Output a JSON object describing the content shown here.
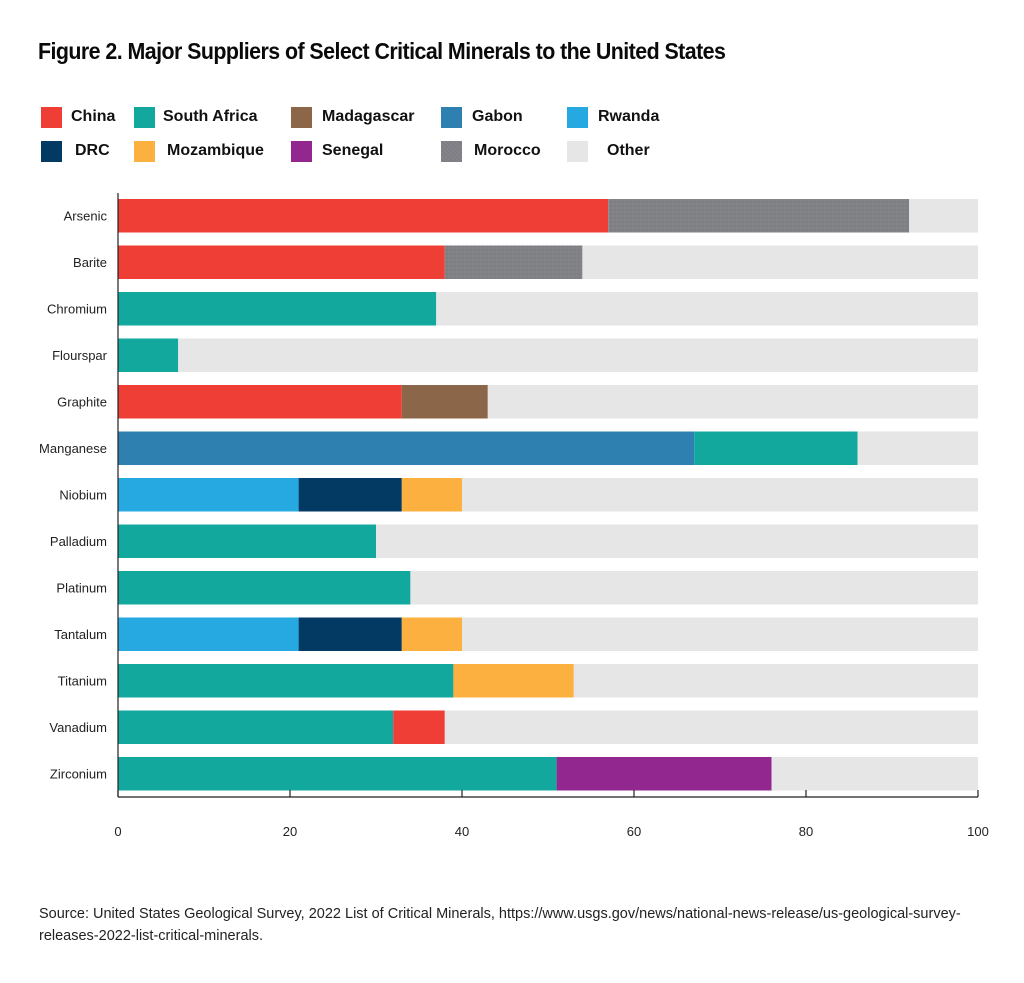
{
  "chart_data": {
    "type": "bar",
    "orientation": "horizontal",
    "stacked": true,
    "title": "Figure 2. Major Suppliers of Select Critical Minerals to the United States",
    "xlabel": "",
    "ylabel": "",
    "xlim": [
      0,
      100
    ],
    "xticks": [
      0,
      20,
      40,
      60,
      80,
      100
    ],
    "grid": false,
    "legend_position": "top",
    "categories": [
      "Arsenic",
      "Barite",
      "Chromium",
      "Flourspar",
      "Graphite",
      "Manganese",
      "Niobium",
      "Palladium",
      "Platinum",
      "Tantalum",
      "Titanium",
      "Vanadium",
      "Zirconium"
    ],
    "legend": [
      {
        "name": "China",
        "color": "#ef3e36"
      },
      {
        "name": "South Africa",
        "color": "#13a89e"
      },
      {
        "name": "Madagascar",
        "color": "#8b6649"
      },
      {
        "name": "Gabon",
        "color": "#2e80b0"
      },
      {
        "name": "Rwanda",
        "color": "#25a9e0"
      },
      {
        "name": "DRC",
        "color": "#033a64"
      },
      {
        "name": "Mozambique",
        "color": "#fbb040"
      },
      {
        "name": "Senegal",
        "color": "#92278f"
      },
      {
        "name": "Morocco",
        "color": "#808285"
      },
      {
        "name": "Other",
        "color": "#e6e6e6"
      }
    ],
    "bars": [
      {
        "category": "Arsenic",
        "segments": [
          {
            "series": "China",
            "value": 57
          },
          {
            "series": "Morocco",
            "value": 35
          },
          {
            "series": "Other",
            "value": 8
          }
        ]
      },
      {
        "category": "Barite",
        "segments": [
          {
            "series": "China",
            "value": 38
          },
          {
            "series": "Morocco",
            "value": 16
          },
          {
            "series": "Other",
            "value": 46
          }
        ]
      },
      {
        "category": "Chromium",
        "segments": [
          {
            "series": "South Africa",
            "value": 37
          },
          {
            "series": "Other",
            "value": 63
          }
        ]
      },
      {
        "category": "Flourspar",
        "segments": [
          {
            "series": "South Africa",
            "value": 7
          },
          {
            "series": "Other",
            "value": 93
          }
        ]
      },
      {
        "category": "Graphite",
        "segments": [
          {
            "series": "China",
            "value": 33
          },
          {
            "series": "Madagascar",
            "value": 10
          },
          {
            "series": "Other",
            "value": 57
          }
        ]
      },
      {
        "category": "Manganese",
        "segments": [
          {
            "series": "Gabon",
            "value": 67
          },
          {
            "series": "South Africa",
            "value": 19
          },
          {
            "series": "Other",
            "value": 14
          }
        ]
      },
      {
        "category": "Niobium",
        "segments": [
          {
            "series": "Rwanda",
            "value": 21
          },
          {
            "series": "DRC",
            "value": 12
          },
          {
            "series": "Mozambique",
            "value": 7
          },
          {
            "series": "Other",
            "value": 60
          }
        ]
      },
      {
        "category": "Palladium",
        "segments": [
          {
            "series": "South Africa",
            "value": 30
          },
          {
            "series": "Other",
            "value": 70
          }
        ]
      },
      {
        "category": "Platinum",
        "segments": [
          {
            "series": "South Africa",
            "value": 34
          },
          {
            "series": "Other",
            "value": 66
          }
        ]
      },
      {
        "category": "Tantalum",
        "segments": [
          {
            "series": "Rwanda",
            "value": 21
          },
          {
            "series": "DRC",
            "value": 12
          },
          {
            "series": "Mozambique",
            "value": 7
          },
          {
            "series": "Other",
            "value": 60
          }
        ]
      },
      {
        "category": "Titanium",
        "segments": [
          {
            "series": "South Africa",
            "value": 39
          },
          {
            "series": "Mozambique",
            "value": 14
          },
          {
            "series": "Other",
            "value": 47
          }
        ]
      },
      {
        "category": "Vanadium",
        "segments": [
          {
            "series": "South Africa",
            "value": 32
          },
          {
            "series": "China",
            "value": 6
          },
          {
            "series": "Other",
            "value": 62
          }
        ]
      },
      {
        "category": "Zirconium",
        "segments": [
          {
            "series": "South Africa",
            "value": 51
          },
          {
            "series": "Senegal",
            "value": 25
          },
          {
            "series": "Other",
            "value": 24
          }
        ]
      }
    ]
  },
  "source": "Source: United States Geological Survey, 2022 List of Critical Minerals, https://www.usgs.gov/news/national-news-release/us-geological-survey-releases-2022-list-critical-minerals."
}
